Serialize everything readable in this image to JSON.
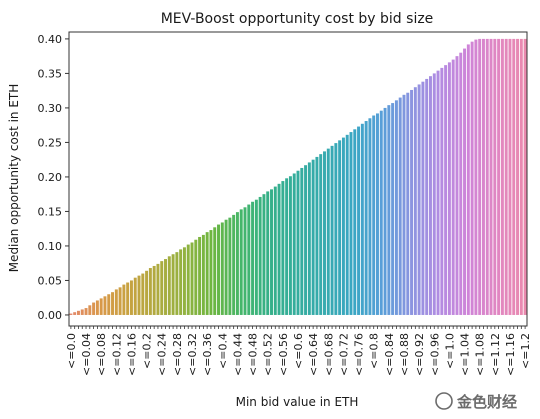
{
  "chart_data": {
    "type": "bar",
    "title": "MEV-Boost opportunity cost by bid size",
    "xlabel": "Min bid value in ETH",
    "ylabel": "Median opportunity cost in ETH",
    "ylim": [
      -0.016,
      0.41
    ],
    "yticks": [
      "0.00",
      "0.05",
      "0.10",
      "0.15",
      "0.20",
      "0.25",
      "0.30",
      "0.35",
      "0.40"
    ],
    "grid": false,
    "legend": "none",
    "xtick_labels": [
      "<=0.0",
      "<=0.04",
      "<=0.08",
      "<=0.12",
      "<=0.16",
      "<=0.2",
      "<=0.24",
      "<=0.28",
      "<=0.32",
      "<=0.36",
      "<=0.4",
      "<=0.44",
      "<=0.48",
      "<=0.52",
      "<=0.56",
      "<=0.6",
      "<=0.64",
      "<=0.68",
      "<=0.72",
      "<=0.76",
      "<=0.8",
      "<=0.84",
      "<=0.88",
      "<=0.92",
      "<=0.96",
      "<=1.0",
      "<=1.04",
      "<=1.08",
      "<=1.12",
      "<=1.16",
      "<=1.2"
    ],
    "categories": [
      "<=0.0",
      "<=0.01",
      "<=0.02",
      "<=0.03",
      "<=0.04",
      "<=0.05",
      "<=0.06",
      "<=0.07",
      "<=0.08",
      "<=0.09",
      "<=0.1",
      "<=0.11",
      "<=0.12",
      "<=0.13",
      "<=0.14",
      "<=0.15",
      "<=0.16",
      "<=0.17",
      "<=0.18",
      "<=0.19",
      "<=0.2",
      "<=0.21",
      "<=0.22",
      "<=0.23",
      "<=0.24",
      "<=0.25",
      "<=0.26",
      "<=0.27",
      "<=0.28",
      "<=0.29",
      "<=0.3",
      "<=0.31",
      "<=0.32",
      "<=0.33",
      "<=0.34",
      "<=0.35",
      "<=0.36",
      "<=0.37",
      "<=0.38",
      "<=0.39",
      "<=0.4",
      "<=0.41",
      "<=0.42",
      "<=0.43",
      "<=0.44",
      "<=0.45",
      "<=0.46",
      "<=0.47",
      "<=0.48",
      "<=0.49",
      "<=0.5",
      "<=0.51",
      "<=0.52",
      "<=0.53",
      "<=0.54",
      "<=0.55",
      "<=0.56",
      "<=0.57",
      "<=0.58",
      "<=0.59",
      "<=0.6",
      "<=0.61",
      "<=0.62",
      "<=0.63",
      "<=0.64",
      "<=0.65",
      "<=0.66",
      "<=0.67",
      "<=0.68",
      "<=0.69",
      "<=0.7",
      "<=0.71",
      "<=0.72",
      "<=0.73",
      "<=0.74",
      "<=0.75",
      "<=0.76",
      "<=0.77",
      "<=0.78",
      "<=0.79",
      "<=0.8",
      "<=0.81",
      "<=0.82",
      "<=0.83",
      "<=0.84",
      "<=0.85",
      "<=0.86",
      "<=0.87",
      "<=0.88",
      "<=0.89",
      "<=0.9",
      "<=0.91",
      "<=0.92",
      "<=0.93",
      "<=0.94",
      "<=0.95",
      "<=0.96",
      "<=0.97",
      "<=0.98",
      "<=0.99",
      "<=1.0",
      "<=1.01",
      "<=1.02",
      "<=1.03",
      "<=1.04",
      "<=1.05",
      "<=1.06",
      "<=1.07",
      "<=1.08",
      "<=1.09",
      "<=1.1",
      "<=1.11",
      "<=1.12",
      "<=1.13",
      "<=1.14",
      "<=1.15",
      "<=1.16",
      "<=1.17",
      "<=1.18",
      "<=1.19",
      "<=1.2"
    ],
    "values": [
      0.002,
      0.004,
      0.006,
      0.008,
      0.01,
      0.014,
      0.018,
      0.021,
      0.024,
      0.027,
      0.03,
      0.033,
      0.037,
      0.04,
      0.044,
      0.047,
      0.05,
      0.054,
      0.057,
      0.06,
      0.064,
      0.068,
      0.071,
      0.074,
      0.078,
      0.081,
      0.085,
      0.088,
      0.091,
      0.095,
      0.098,
      0.102,
      0.105,
      0.109,
      0.113,
      0.116,
      0.12,
      0.123,
      0.127,
      0.131,
      0.134,
      0.138,
      0.141,
      0.145,
      0.149,
      0.153,
      0.156,
      0.16,
      0.164,
      0.167,
      0.171,
      0.175,
      0.179,
      0.182,
      0.186,
      0.19,
      0.194,
      0.198,
      0.201,
      0.205,
      0.209,
      0.213,
      0.217,
      0.221,
      0.225,
      0.229,
      0.233,
      0.237,
      0.241,
      0.245,
      0.249,
      0.253,
      0.257,
      0.261,
      0.265,
      0.269,
      0.273,
      0.277,
      0.281,
      0.285,
      0.289,
      0.292,
      0.296,
      0.3,
      0.304,
      0.307,
      0.311,
      0.315,
      0.319,
      0.322,
      0.326,
      0.33,
      0.334,
      0.338,
      0.342,
      0.346,
      0.35,
      0.354,
      0.358,
      0.362,
      0.366,
      0.37,
      0.375,
      0.38,
      0.386,
      0.392,
      0.396,
      0.399,
      0.4,
      0.4,
      0.4,
      0.4,
      0.4,
      0.4,
      0.4,
      0.4,
      0.4,
      0.4,
      0.4,
      0.4,
      0.4
    ]
  },
  "palette": [
    "#e3886a",
    "#d9984a",
    "#c8a241",
    "#b0aa40",
    "#92b240",
    "#6cb640",
    "#45b66a",
    "#35b089",
    "#35ad9e",
    "#37aab0",
    "#3ba6c4",
    "#5a9ed9",
    "#8c94e0",
    "#b38be2",
    "#cf84d8",
    "#e086c2",
    "#ea8aae"
  ],
  "watermark": {
    "text": "金色财经"
  }
}
